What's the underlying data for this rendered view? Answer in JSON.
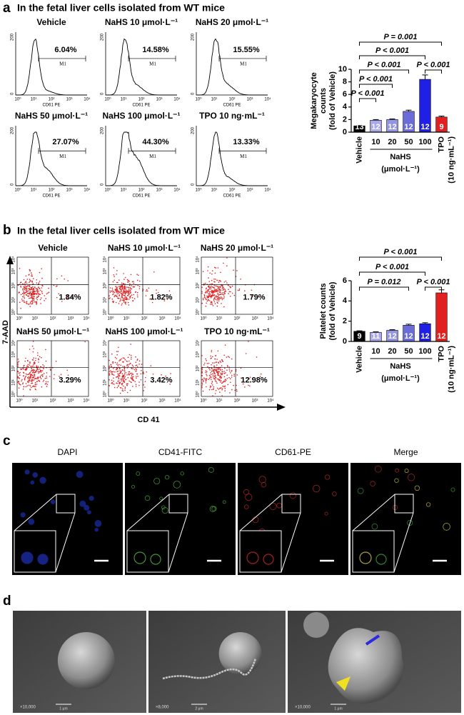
{
  "panels": {
    "a": {
      "label": "a",
      "title": "In the fetal liver cells isolated from WT mice",
      "histograms": [
        {
          "title": "Vehicle",
          "percent": "6.04%"
        },
        {
          "title": "NaHS 10 μmol·L⁻¹",
          "percent": "14.58%"
        },
        {
          "title": "NaHS 20 μmol·L⁻¹",
          "percent": "15.55%"
        },
        {
          "title": "NaHS 50 μmol·L⁻¹",
          "percent": "27.07%"
        },
        {
          "title": "NaHS 100 μmol·L⁻¹",
          "percent": "44.30%"
        },
        {
          "title": "TPO 10 ng·mL⁻¹",
          "percent": "13.33%"
        }
      ],
      "axis": {
        "yticks": [
          "0",
          "200"
        ],
        "xticks": [
          "10⁰",
          "10¹",
          "10²",
          "10³",
          "10⁴"
        ],
        "xlabel": "CD61 PE",
        "gate": "M1"
      }
    },
    "b": {
      "label": "b",
      "title": "In the fetal liver cells isolated from WT mice",
      "plots": [
        {
          "title": "Vehicle",
          "percent": "1.84%"
        },
        {
          "title": "NaHS 10 μmol·L⁻¹",
          "percent": "1.82%"
        },
        {
          "title": "NaHS 20 μmol·L⁻¹",
          "percent": "1.79%"
        },
        {
          "title": "NaHS 50 μmol·L⁻¹",
          "percent": "3.29%"
        },
        {
          "title": "NaHS 100 μmol·L⁻¹",
          "percent": "3.42%"
        },
        {
          "title": "TPO 10 ng·mL⁻¹",
          "percent": "12.98%"
        }
      ],
      "ticks": [
        "10⁰",
        "10¹",
        "10²",
        "10³",
        "10⁴"
      ],
      "ylabel": "7-AAD",
      "xlabel": "CD 41"
    },
    "c": {
      "label": "c",
      "images": [
        "DAPI",
        "CD41-FITC",
        "CD61-PE",
        "Merge"
      ]
    },
    "d": {
      "label": "d",
      "images": [
        {
          "magnification": "×10,000",
          "scale": "1 μm"
        },
        {
          "magnification": "×8,000",
          "scale": "2 μm"
        },
        {
          "magnification": "×10,000",
          "scale": "1 μm"
        }
      ]
    }
  },
  "chart_data": [
    {
      "type": "bar",
      "ylabel": [
        "Megakaryocyte",
        "counts",
        "(fold of Vehicle)"
      ],
      "categories": [
        "Vehicle",
        "10",
        "20",
        "50",
        "100",
        "TPO"
      ],
      "values": [
        1,
        1.9,
        2.0,
        3.3,
        8.4,
        2.4
      ],
      "errors": [
        0.05,
        0.1,
        0.1,
        0.2,
        0.7,
        0.15
      ],
      "n_labels": [
        "13",
        "12",
        "12",
        "12",
        "12",
        "9"
      ],
      "colors": [
        "#000000",
        "#a9a9ec",
        "#9494e4",
        "#6c6cd8",
        "#1f1fe6",
        "#e32020"
      ],
      "ylim": [
        0,
        10
      ],
      "yticks": [
        0,
        2,
        4,
        6,
        8,
        10
      ],
      "group_label": "NaHS",
      "group_unit": "(μmol·L⁻¹)",
      "tpo_unit": "(10 ng·mL⁻¹)",
      "annotations": [
        "P = 0.001",
        "P < 0.001",
        "P < 0.001",
        "P < 0.001",
        "P < 0.001",
        "P < 0.001"
      ]
    },
    {
      "type": "bar",
      "ylabel": [
        "Platelet counts",
        "(fold of Vehicle)"
      ],
      "categories": [
        "Vehicle",
        "10",
        "20",
        "50",
        "100",
        "TPO"
      ],
      "values": [
        1.0,
        0.9,
        1.1,
        1.6,
        1.75,
        4.8
      ],
      "errors": [
        0.05,
        0.05,
        0.06,
        0.1,
        0.1,
        0.3
      ],
      "n_labels": [
        "9",
        "11",
        "12",
        "12",
        "12",
        "12"
      ],
      "colors": [
        "#000000",
        "#a9a9ec",
        "#9494e4",
        "#6c6cd8",
        "#1f1fe6",
        "#e32020"
      ],
      "ylim": [
        0,
        6
      ],
      "yticks": [
        0,
        2,
        4,
        6
      ],
      "group_label": "NaHS",
      "group_unit": "(μmol·L⁻¹)",
      "tpo_unit": "(10 ng·mL⁻¹)",
      "annotations": [
        "P < 0.001",
        "P < 0.001",
        "P = 0.012",
        "P < 0.001"
      ]
    }
  ]
}
